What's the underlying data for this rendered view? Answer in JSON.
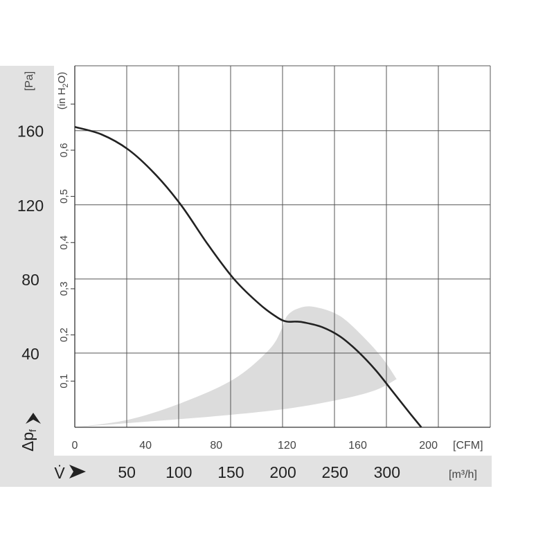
{
  "chart_data": {
    "type": "line",
    "title": "",
    "y_axis_pa": {
      "unit_label": "[Pa]",
      "ticks": [
        "160",
        "120",
        "80",
        "40"
      ],
      "tick_values": [
        160,
        120,
        80,
        40
      ],
      "ylim": [
        0,
        195
      ],
      "axis_label": "Δp",
      "axis_label_sub": "f"
    },
    "y_axis_inh2o": {
      "unit_label": "(in H",
      "unit_label_sub": "2",
      "unit_label_end": "O)",
      "ticks": [
        "0,6",
        "0,5",
        "0,4",
        "0,3",
        "0,2",
        "0,1"
      ],
      "tick_values": [
        0.6,
        0.5,
        0.4,
        0.3,
        0.2,
        0.1
      ]
    },
    "x_axis_cfm": {
      "unit_label": "[CFM]",
      "ticks": [
        "0",
        "40",
        "80",
        "120",
        "160",
        "200"
      ],
      "tick_values": [
        0,
        40,
        80,
        120,
        160,
        200
      ],
      "xlim": [
        0,
        235
      ]
    },
    "x_axis_m3h": {
      "axis_label": "V̇",
      "unit_label": "[m³/h]",
      "ticks": [
        "50",
        "100",
        "150",
        "200",
        "250",
        "300"
      ],
      "tick_values": [
        50,
        100,
        150,
        200,
        250,
        300
      ]
    },
    "grid": true,
    "series": [
      {
        "x_cfm": [
          0,
          15,
          30,
          45,
          60,
          75,
          90,
          105,
          115,
          120,
          125,
          130,
          140,
          150,
          160,
          170,
          180,
          190,
          196
        ],
        "y_pa": [
          162,
          158,
          150,
          137,
          120,
          99,
          80,
          66,
          59,
          57,
          57,
          56.5,
          54,
          49,
          41,
          31,
          19,
          7,
          0
        ]
      }
    ],
    "shaded_region": {
      "upper_x_cfm": [
        0,
        30,
        60,
        90,
        110,
        117,
        120,
        126,
        135,
        150,
        165,
        175,
        182
      ],
      "upper_y_pa": [
        0,
        4,
        13,
        26,
        42,
        53,
        60,
        64,
        65,
        60,
        47,
        36,
        26
      ],
      "lower_x_cfm": [
        182,
        170,
        150,
        120,
        80,
        40,
        0
      ],
      "lower_y_pa": [
        26,
        20,
        15,
        10,
        6,
        3,
        0
      ],
      "color": "#dcdcdc"
    },
    "band_color": "#e2e2e2",
    "line_color": "#222222",
    "grid_color": "#555555"
  }
}
